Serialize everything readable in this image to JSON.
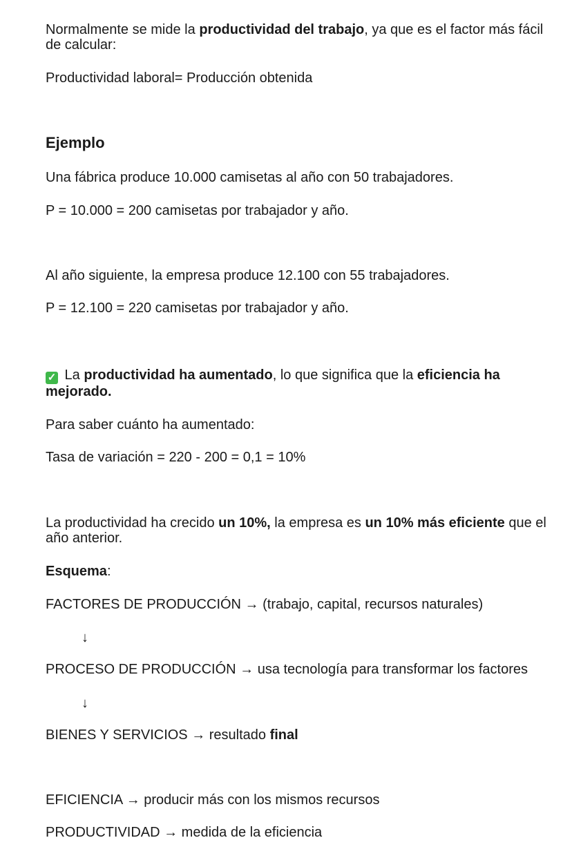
{
  "intro": {
    "a": "Normalmente se mide la ",
    "b": "productividad del trabajo",
    "c": ", ya que es el factor más fácil de calcular:"
  },
  "formula": "Productividad laboral= Producción obtenida",
  "example_heading": "Ejemplo",
  "ex1": "Una fábrica produce 10.000 camisetas al año con 50 trabajadores.",
  "ex1_calc": "P = 10.000 = 200 camisetas por trabajador y año.",
  "ex2": "Al año siguiente, la empresa produce 12.100 con 55 trabajadores.",
  "ex2_calc": "P = 12.100 = 220 camisetas por trabajador y año.",
  "conclusion": {
    "icon": "check-mark-button-icon",
    "icon_glyph": "✓",
    "a": " La ",
    "b": "productividad ha aumentado",
    "c": ", lo que significa que la ",
    "d": "eficiencia ha mejorado."
  },
  "how_much": "Para saber cuánto ha aumentado:",
  "rate": "Tasa de variación = 220 - 200 = 0,1 = 10%",
  "growth": {
    "a": "La productividad ha crecido ",
    "b": "un 10%,",
    "c": " la empresa es ",
    "d": "un 10% más eficiente",
    "e": " que el año anterior."
  },
  "scheme": {
    "label": "Esquema",
    "colon": ":",
    "line1": "FACTORES DE PRODUCCIÓN → (trabajo, capital, recursos naturales)",
    "down": "↓",
    "line2": "PROCESO DE PRODUCCIÓN → usa tecnología para transformar los factores",
    "line3a": "BIENES Y SERVICIOS → resultado ",
    "line3b": "final"
  },
  "def1": "EFICIENCIA → producir más con los mismos recursos",
  "def2": "PRODUCTIVIDAD → medida de la eficiencia"
}
